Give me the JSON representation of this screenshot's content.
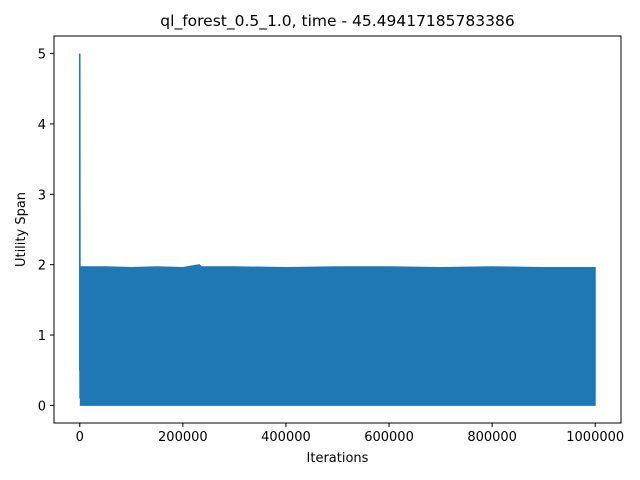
{
  "chart_data": {
    "type": "line",
    "title": "ql_forest_0.5_1.0, time - 45.49417185783386",
    "xlabel": "Iterations",
    "ylabel": "Utility Span",
    "xlim": [
      -50000,
      1050000
    ],
    "ylim": [
      -0.25,
      5.25
    ],
    "x_ticks": [
      0,
      200000,
      400000,
      600000,
      800000,
      1000000
    ],
    "x_tick_labels": [
      "0",
      "200000",
      "400000",
      "600000",
      "800000",
      "1000000"
    ],
    "y_ticks": [
      0,
      1,
      2,
      3,
      4,
      5
    ],
    "y_tick_labels": [
      "0",
      "1",
      "2",
      "3",
      "4",
      "5"
    ],
    "grid": false,
    "legend": "none",
    "series": [
      {
        "color": "#1f77b4",
        "spike": {
          "x": [
            0,
            0,
            500,
            1500,
            3000
          ],
          "y": [
            0.5,
            5.0,
            0.1,
            0.5,
            1.97
          ]
        },
        "band": {
          "x_start": 1000,
          "x_end": 1000000,
          "low": 0.0,
          "high_x": [
            1000,
            50000,
            100000,
            150000,
            200000,
            232000,
            236000,
            300000,
            400000,
            500000,
            600000,
            700000,
            800000,
            900000,
            1000000
          ],
          "high": [
            1.97,
            1.97,
            1.96,
            1.97,
            1.96,
            2.0,
            1.97,
            1.97,
            1.96,
            1.97,
            1.97,
            1.96,
            1.97,
            1.96,
            1.96
          ]
        }
      }
    ]
  }
}
